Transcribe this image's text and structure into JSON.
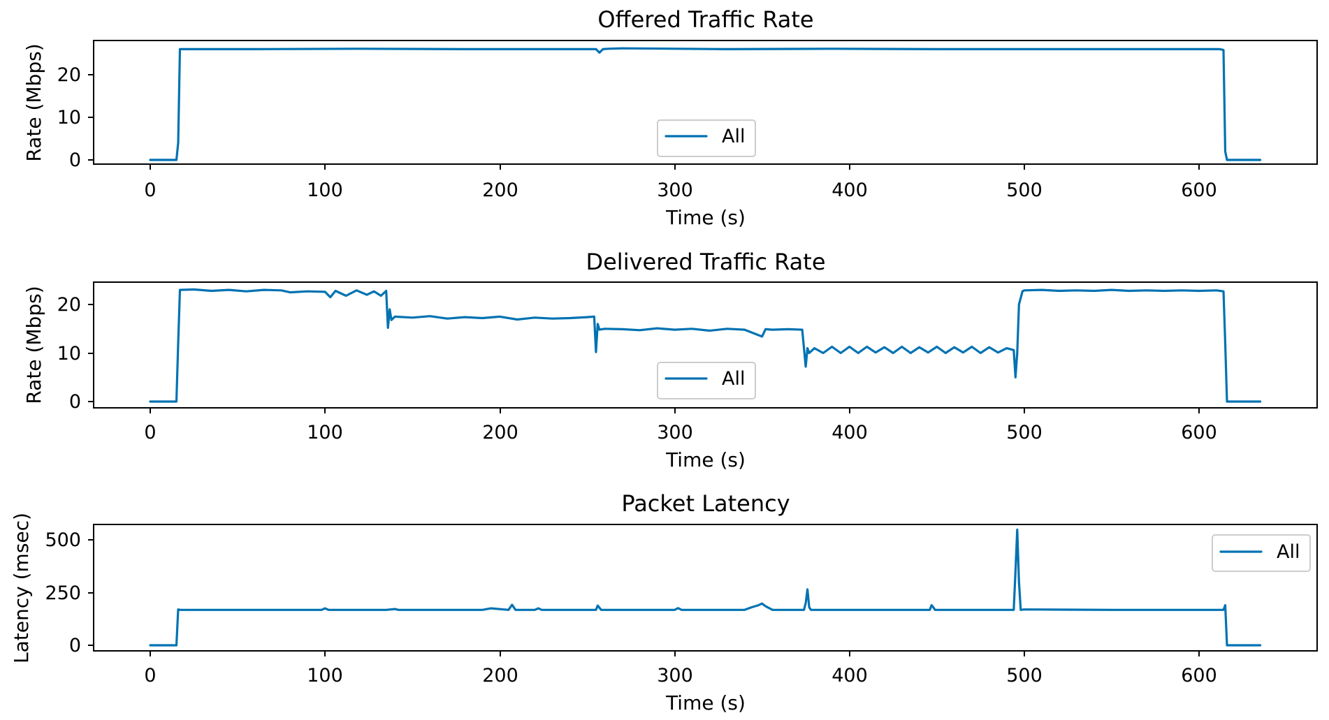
{
  "chart_data": [
    {
      "type": "line",
      "title": "Offered Traffic Rate",
      "xlabel": "Time (s)",
      "ylabel": "Rate (Mbps)",
      "xlim": [
        -32,
        668
      ],
      "ylim": [
        -1.3,
        27.8
      ],
      "xticks": [
        0,
        100,
        200,
        300,
        400,
        500,
        600
      ],
      "yticks": [
        0,
        10,
        20
      ],
      "legend": {
        "position": "lower-center"
      },
      "color": "#0072B2",
      "series": [
        {
          "name": "All",
          "x": [
            0,
            15,
            16,
            17,
            60,
            120,
            180,
            240,
            255,
            257,
            259,
            262,
            270,
            330,
            390,
            450,
            510,
            570,
            612,
            614,
            615,
            616,
            620,
            635
          ],
          "y": [
            0,
            0,
            4,
            26,
            26,
            26.1,
            26,
            26,
            26,
            25.2,
            26,
            26.1,
            26.2,
            26,
            26.1,
            26,
            26,
            26,
            26,
            25.8,
            2,
            0,
            0,
            0
          ]
        }
      ]
    },
    {
      "type": "line",
      "title": "Delivered Traffic Rate",
      "xlabel": "Time (s)",
      "ylabel": "Rate (Mbps)",
      "xlim": [
        -32,
        668
      ],
      "ylim": [
        -1.2,
        24.5
      ],
      "xticks": [
        0,
        100,
        200,
        300,
        400,
        500,
        600
      ],
      "yticks": [
        0,
        10,
        20
      ],
      "legend": {
        "position": "lower-center"
      },
      "color": "#0072B2",
      "series": [
        {
          "name": "All",
          "x": [
            0,
            15,
            16,
            17,
            25,
            35,
            45,
            55,
            65,
            75,
            80,
            90,
            100,
            103,
            106,
            112,
            118,
            124,
            128,
            132,
            135,
            136,
            137,
            138,
            140,
            150,
            160,
            170,
            180,
            190,
            200,
            210,
            220,
            230,
            240,
            250,
            254,
            255,
            256,
            257,
            260,
            270,
            280,
            290,
            300,
            310,
            320,
            330,
            340,
            350,
            352,
            356,
            365,
            373,
            374,
            375,
            376,
            377,
            380,
            385,
            390,
            395,
            400,
            405,
            410,
            415,
            420,
            425,
            430,
            435,
            440,
            445,
            450,
            455,
            460,
            465,
            470,
            475,
            480,
            485,
            490,
            494,
            495,
            496,
            497,
            499,
            500,
            510,
            520,
            530,
            540,
            550,
            560,
            570,
            580,
            590,
            600,
            610,
            614,
            615,
            616,
            620,
            635
          ],
          "y": [
            0,
            0,
            12,
            23,
            23.1,
            22.8,
            23,
            22.7,
            23,
            22.9,
            22.5,
            22.7,
            22.6,
            21.5,
            22.8,
            21.8,
            22.9,
            22,
            22.7,
            21.8,
            22.8,
            15.2,
            19,
            16.8,
            17.5,
            17.3,
            17.6,
            17.1,
            17.4,
            17.2,
            17.5,
            16.9,
            17.3,
            17.1,
            17.2,
            17.4,
            17.5,
            10.2,
            16,
            14.8,
            15,
            14.9,
            14.7,
            15.1,
            14.8,
            15,
            14.6,
            15,
            14.8,
            13.4,
            14.9,
            14.8,
            14.9,
            14.8,
            11,
            7.2,
            11,
            10,
            11,
            10,
            11.3,
            10,
            11.3,
            10,
            11.3,
            10.1,
            11.2,
            10,
            11.3,
            10,
            11.2,
            10.1,
            11.3,
            10,
            11.2,
            10.1,
            11.3,
            10,
            11.2,
            10.1,
            11,
            10.6,
            5,
            10,
            20,
            22.7,
            22.9,
            23,
            22.8,
            22.9,
            22.8,
            23,
            22.8,
            22.9,
            22.8,
            22.9,
            22.8,
            22.9,
            22.7,
            12,
            0,
            0,
            0
          ]
        }
      ]
    },
    {
      "type": "line",
      "title": "Packet Latency",
      "xlabel": "Time (s)",
      "ylabel": "Latency (msec)",
      "xlim": [
        -32,
        668
      ],
      "ylim": [
        -27,
        570
      ],
      "xticks": [
        0,
        100,
        200,
        300,
        400,
        500,
        600
      ],
      "yticks": [
        0,
        250,
        500
      ],
      "legend": {
        "position": "upper-right"
      },
      "color": "#0072B2",
      "series": [
        {
          "name": "All",
          "x": [
            0,
            15,
            16,
            17,
            50,
            98,
            100,
            102,
            135,
            140,
            142,
            190,
            195,
            205,
            207,
            209,
            220,
            222,
            224,
            255,
            256,
            258,
            300,
            302,
            304,
            340,
            344,
            348,
            350,
            352,
            356,
            374,
            375,
            376,
            377,
            378,
            380,
            446,
            447,
            448,
            449,
            494,
            495,
            496,
            497,
            498,
            500,
            550,
            600,
            614,
            615,
            616,
            620,
            635
          ],
          "y": [
            0,
            0,
            170,
            168,
            168,
            168,
            175,
            168,
            168,
            172,
            168,
            168,
            175,
            168,
            192,
            168,
            168,
            175,
            168,
            168,
            188,
            168,
            168,
            176,
            168,
            168,
            180,
            190,
            198,
            185,
            168,
            168,
            200,
            265,
            180,
            168,
            168,
            168,
            190,
            180,
            168,
            168,
            350,
            548,
            300,
            168,
            170,
            168,
            168,
            168,
            190,
            0,
            0,
            0
          ]
        }
      ]
    }
  ]
}
